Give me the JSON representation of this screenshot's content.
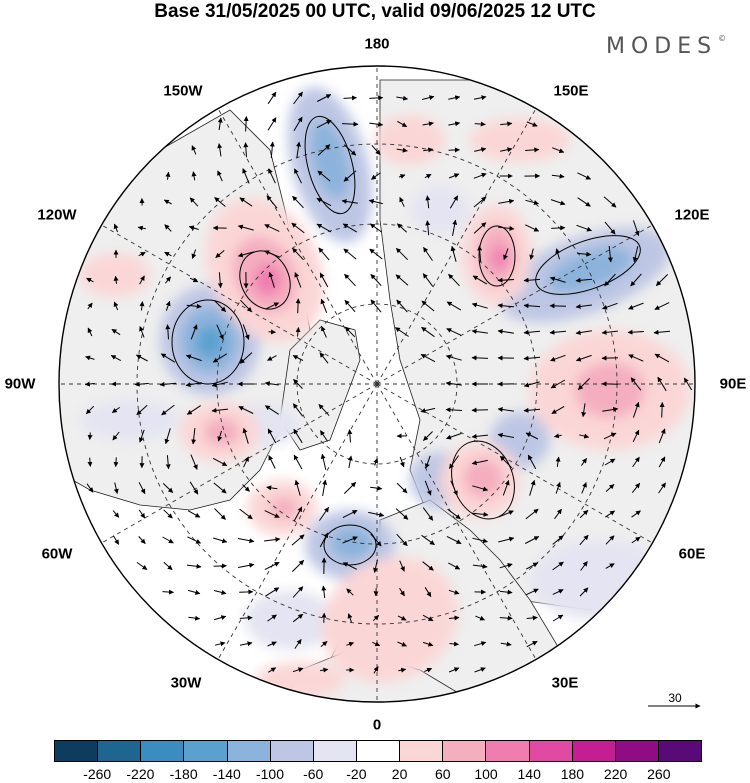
{
  "title": "Base 31/05/2025 00 UTC, valid 09/06/2025 12 UTC",
  "brand": {
    "text": "MODES",
    "mark": "©"
  },
  "longitude_labels": [
    {
      "key": "n180",
      "text": "180"
    },
    {
      "key": "w150",
      "text": "150W"
    },
    {
      "key": "e150",
      "text": "150E"
    },
    {
      "key": "w120",
      "text": "120W"
    },
    {
      "key": "e120",
      "text": "120E"
    },
    {
      "key": "w90",
      "text": "90W"
    },
    {
      "key": "e90",
      "text": "90E"
    },
    {
      "key": "w60",
      "text": "60W"
    },
    {
      "key": "e60",
      "text": "60E"
    },
    {
      "key": "w30",
      "text": "30W"
    },
    {
      "key": "e30",
      "text": "30E"
    },
    {
      "key": "s0",
      "text": "0"
    }
  ],
  "reference_vector": {
    "value": "30"
  },
  "colorbar": {
    "colors": [
      "#0d3c5e",
      "#1f6592",
      "#3b8cc1",
      "#5aa1d0",
      "#8cb3dc",
      "#bdc6e4",
      "#e4e4f2",
      "#ffffff",
      "#fbd6d6",
      "#f4aebf",
      "#f07db0",
      "#e04aa2",
      "#c41e92",
      "#8f0c84",
      "#5a0a78"
    ],
    "ticks": [
      "-260",
      "-220",
      "-180",
      "-140",
      "-100",
      "-60",
      "-20",
      "20",
      "60",
      "100",
      "140",
      "180",
      "220",
      "260"
    ]
  },
  "colors": {
    "land_fill": "#efefef",
    "coastline": "#222222",
    "gridline": "#333333"
  }
}
